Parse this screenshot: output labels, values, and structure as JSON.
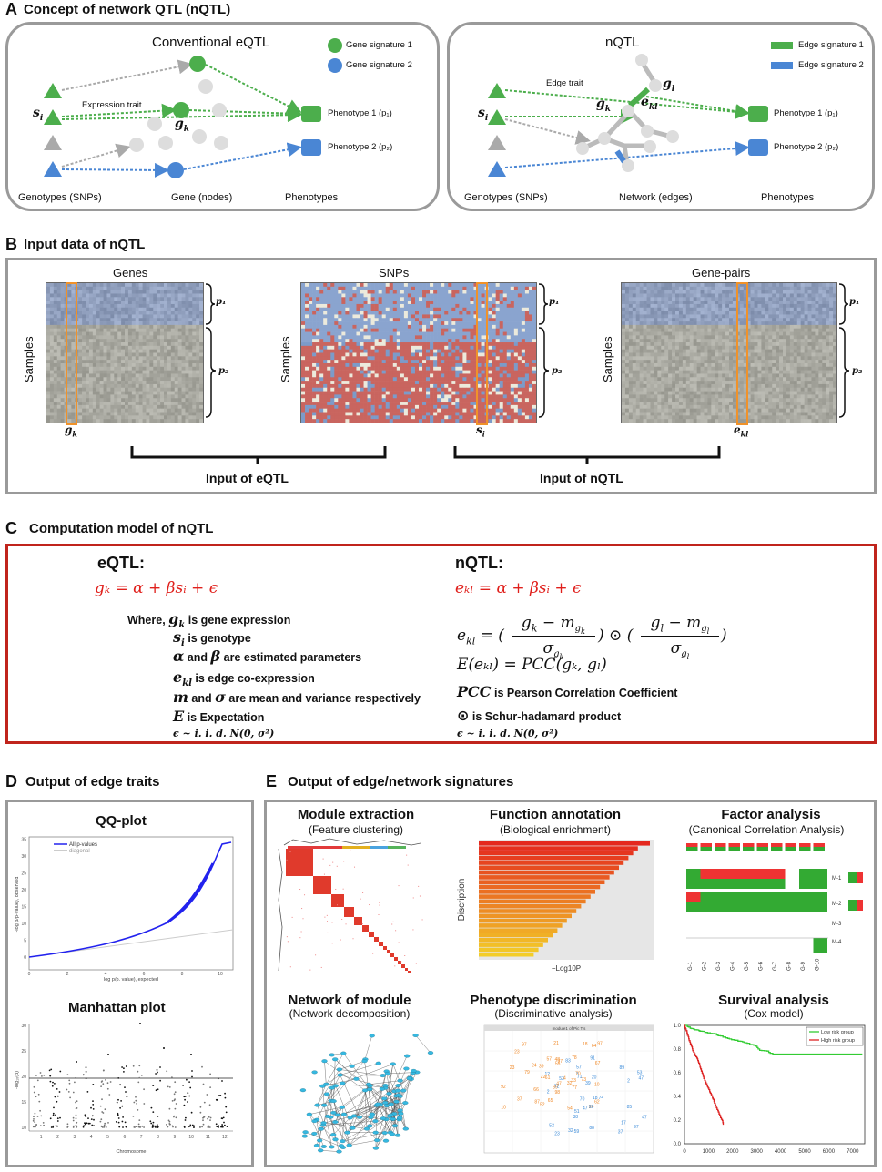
{
  "panelA": {
    "letter": "A",
    "title": "Concept of network QTL  (nQTL)",
    "left": {
      "heading": "Conventional   eQTL",
      "legend1": "Gene signature 1",
      "legend2": "Gene signature 2",
      "expression_trait": "Expression trait",
      "si": "s",
      "si_sub": "i",
      "gk": "g",
      "gk_sub": "k",
      "pheno1": "Phenotype 1 (p₁)",
      "pheno2": "Phenotype 2 (p₂)",
      "genotypes": "Genotypes (SNPs)",
      "genes": "Gene (nodes)",
      "phenotypes": "Phenotypes",
      "color_green": "#4cae4c",
      "color_blue": "#4a86d4"
    },
    "right": {
      "heading": "nQTL",
      "legend1": "Edge signature 1",
      "legend2": "Edge signature 2",
      "edge_trait": "Edge trait",
      "si": "s",
      "si_sub": "i",
      "gk": "g",
      "gk_sub": "k",
      "gl": "g",
      "gl_sub": "l",
      "ekl": "e",
      "ekl_sub": "kl",
      "pheno1": "Phenotype 1 (p₁)",
      "pheno2": "Phenotype 2 (p₂)",
      "genotypes": "Genotypes (SNPs)",
      "network": "Network (edges)",
      "phenotypes": "Phenotypes"
    }
  },
  "panelB": {
    "letter": "B",
    "title": "Input data of nQTL",
    "genes": "Genes",
    "snps": "SNPs",
    "gene_pairs": "Gene-pairs",
    "samples": "Samples",
    "p1": "p₁",
    "p2": "p₂",
    "gk": "g",
    "gk_sub": "k",
    "si": "s",
    "si_sub": "i",
    "ekl": "e",
    "ekl_sub": "kl",
    "input_eqtl": "Input  of  eQTL",
    "input_nqtl": "Input  of  nQTL"
  },
  "panelC": {
    "letter": "C",
    "title": "Computation model of nQTL",
    "eqtl_title": "eQTL:",
    "nqtl_title": "nQTL:",
    "eqtl_eq": "gₖ = α + βsᵢ + ϵ",
    "nqtl_eq": "eₖₗ = α + βsᵢ + ϵ",
    "where": "Where,",
    "def_g": "is gene expression",
    "def_s": "is genotype",
    "def_ab": "are estimated parameters",
    "and": "and",
    "def_e": "is edge co-expression",
    "def_m": "are mean and variance respectively",
    "def_E": "is Expectation",
    "eps_dist": "ϵ ~ i. i. d. N(0, σ²)",
    "expectation_eq": "E(eₖₗ) = PCC(gₖ, gₗ)",
    "pcc_def": "is Pearson Correlation Coefficient",
    "pcc": "PCC",
    "schur_def": "is Schur-hadamard product",
    "odot": "⊙"
  },
  "panelD": {
    "letter": "D",
    "title": "Output of edge traits",
    "qq_title": "QQ-plot",
    "qq_legend1": "All p-values",
    "qq_legend2": "diagonal",
    "qq_xlabel": "log p/p. value), expected",
    "qq_ylabel": "-log p/p-value), observed",
    "qq_xticks": [
      "0",
      "2",
      "4",
      "6",
      "8",
      "10"
    ],
    "qq_yticks": [
      "0",
      "5",
      "10",
      "15",
      "20",
      "25",
      "30",
      "35"
    ],
    "man_title": "Manhattan plot",
    "man_xlabel": "Chromosome",
    "man_ylabel": "-log₁₀(p)",
    "man_xticks": [
      "1",
      "2",
      "3",
      "4",
      "5",
      "6",
      "7",
      "8",
      "9",
      "10",
      "11",
      "12"
    ],
    "man_yticks": [
      "10",
      "15",
      "20",
      "25",
      "30"
    ]
  },
  "panelE": {
    "letter": "E",
    "title": "Output of edge/network signatures",
    "module_title": "Module extraction",
    "module_sub": "(Feature clustering)",
    "func_title": "Function annotation",
    "func_sub": "(Biological enrichment)",
    "func_ylabel": "Discription",
    "func_xlabel": "−Log10P",
    "factor_title": "Factor analysis",
    "factor_sub": "(Canonical Correlation Analysis)",
    "factor_rows": [
      "M-1",
      "M-2",
      "M-3",
      "M-4"
    ],
    "factor_cols": [
      "G-1",
      "G-2",
      "G-3",
      "G-4",
      "G-5",
      "G-6",
      "G-7",
      "G-8",
      "G-9",
      "G-10"
    ],
    "network_title": "Network of module",
    "network_sub": "(Network decomposition)",
    "pheno_title": "Phenotype discrimination",
    "pheno_sub": "(Discriminative analysis)",
    "pheno_plot_title": "module1 of Pic Tis",
    "survival_title": "Survival analysis",
    "survival_sub": "(Cox model)",
    "surv_legend1": "Low risk group",
    "surv_legend2": "High risk group",
    "surv_xticks": [
      "0",
      "1000",
      "2000",
      "3000",
      "4000",
      "5000",
      "6000",
      "7000"
    ],
    "surv_yticks": [
      "0.0",
      "0.2",
      "0.4",
      "0.6",
      "0.8",
      "1.0"
    ]
  }
}
